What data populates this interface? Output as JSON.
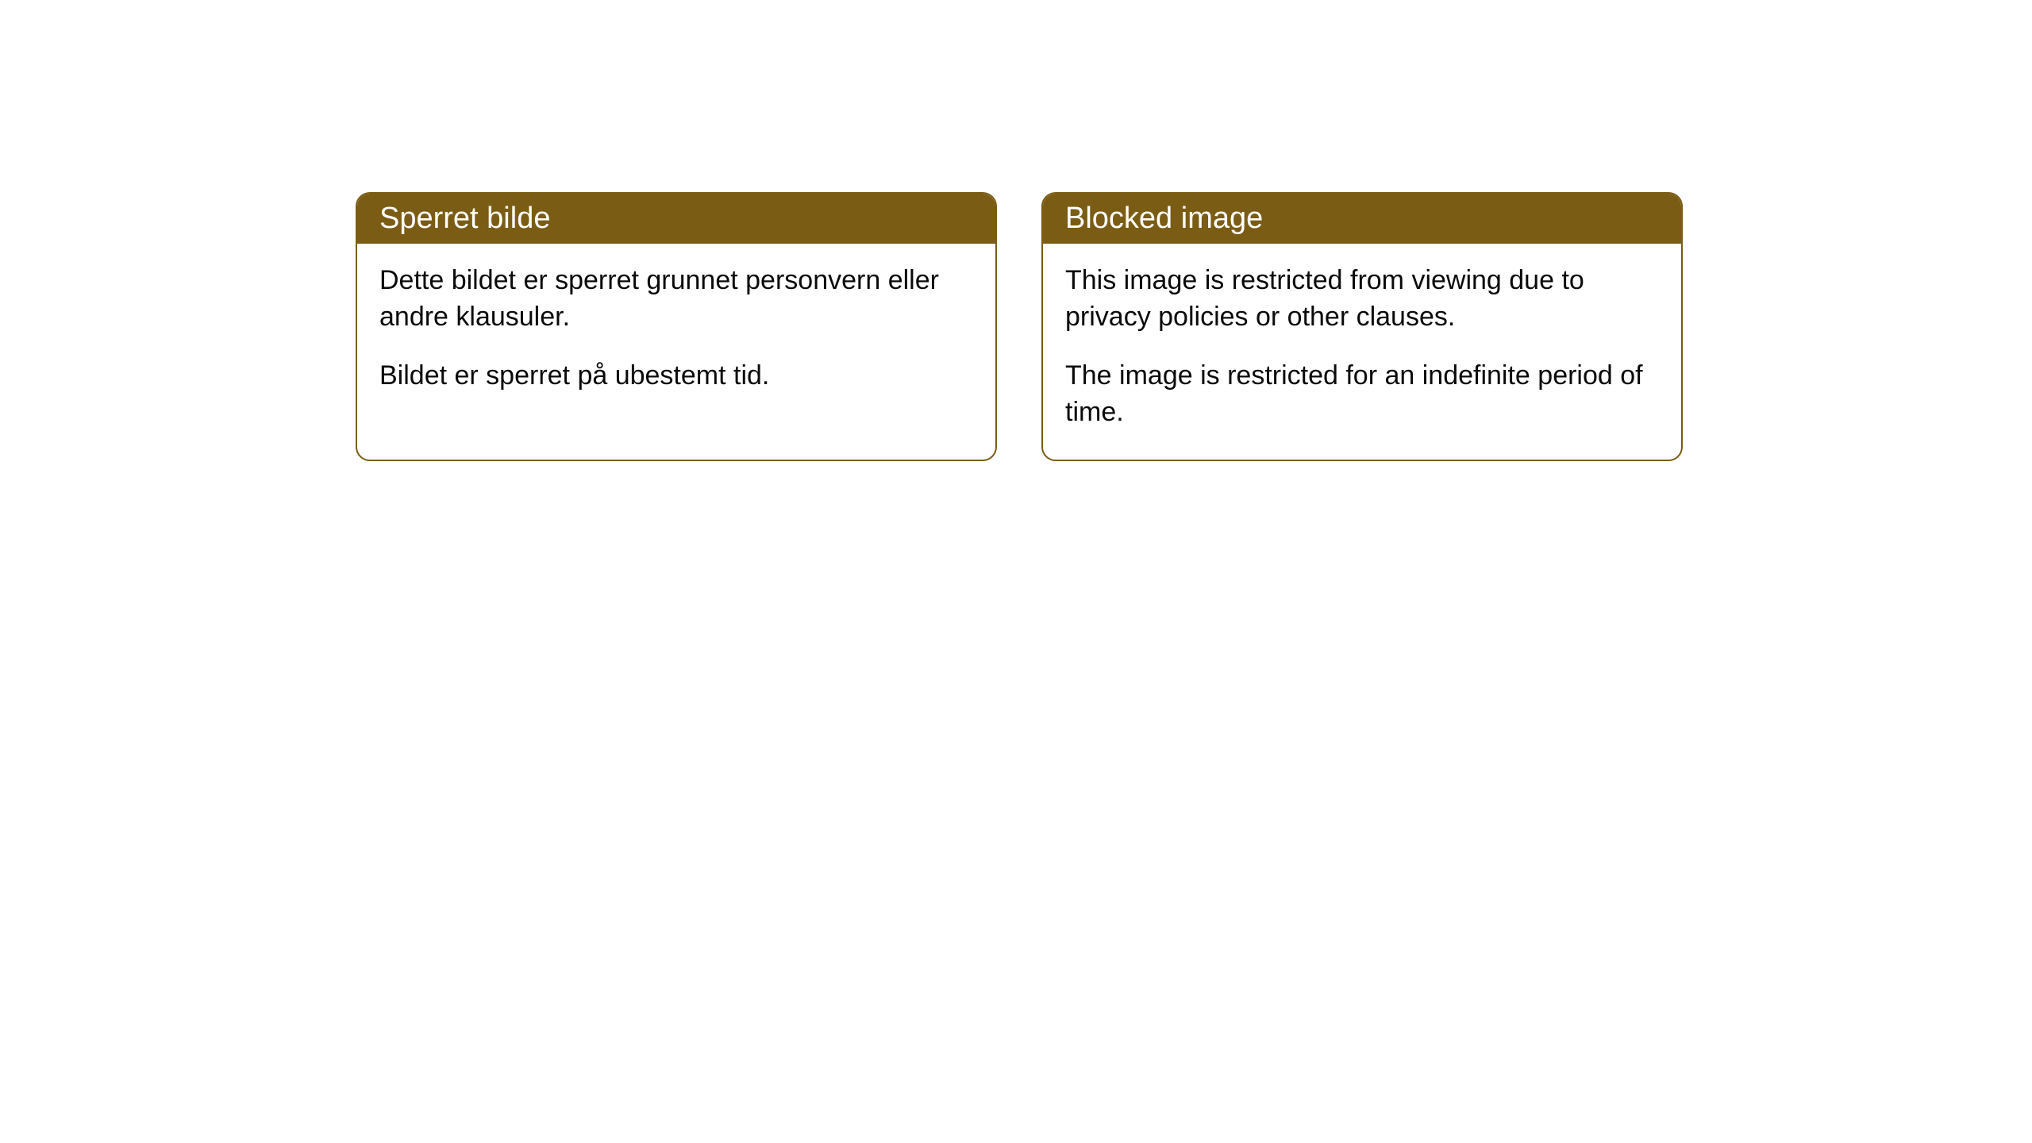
{
  "cards": [
    {
      "header": "Sperret bilde",
      "paragraph1": "Dette bildet er sperret grunnet personvern eller andre klausuler.",
      "paragraph2": "Bildet er sperret på ubestemt tid."
    },
    {
      "header": "Blocked image",
      "paragraph1": "This image is restricted from viewing due to privacy policies or other clauses.",
      "paragraph2": "The image is restricted for an indefinite period of time."
    }
  ],
  "style": {
    "header_bg_color": "#7a5c14",
    "header_text_color": "#ffffff",
    "border_color": "#7a5c14",
    "body_bg_color": "#ffffff",
    "body_text_color": "#0a0a0a",
    "border_radius": 18,
    "header_fontsize": 38,
    "body_fontsize": 34
  }
}
